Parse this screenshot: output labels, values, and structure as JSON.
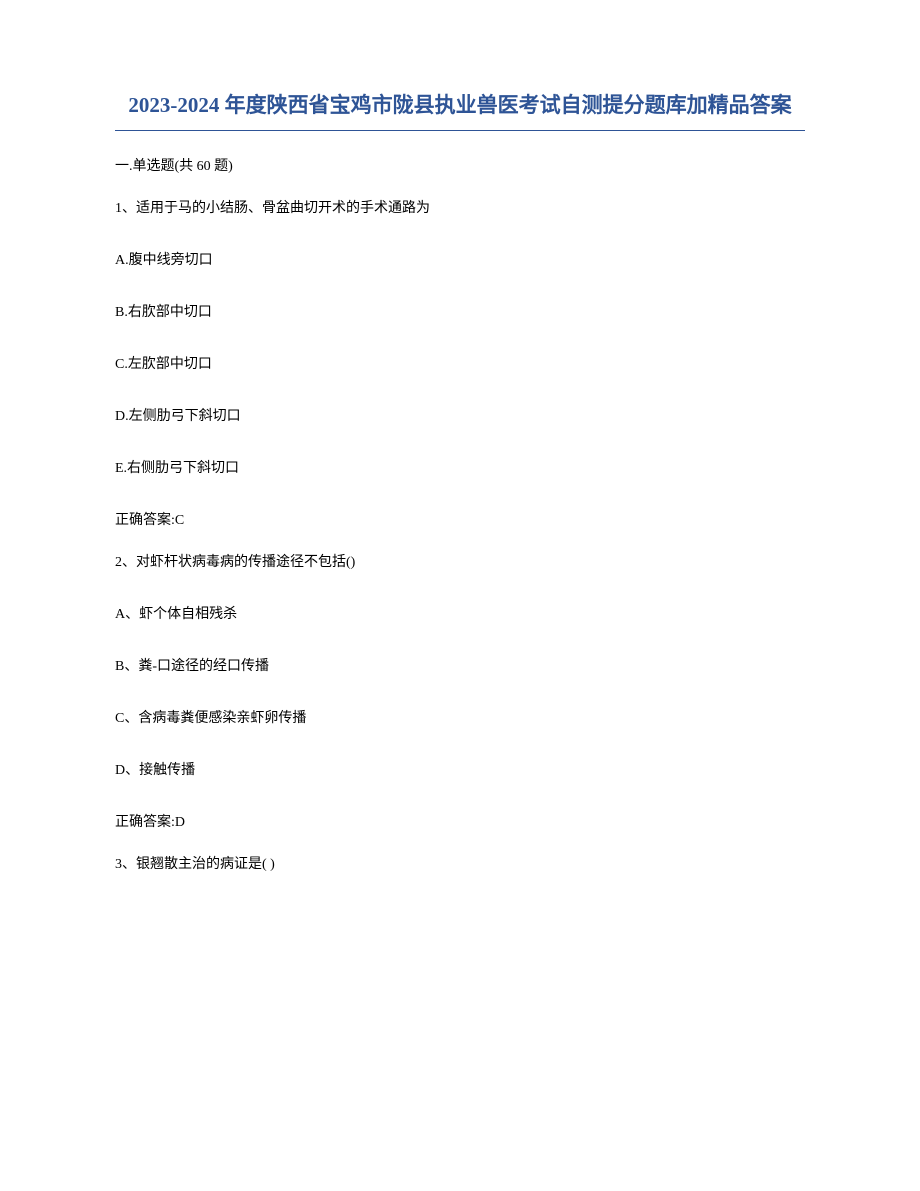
{
  "title": "2023-2024 年度陕西省宝鸡市陇县执业兽医考试自测提分题库加精品答案",
  "section_header": "一.单选题(共 60 题)",
  "questions": [
    {
      "number": "1、",
      "text": "适用于马的小结肠、骨盆曲切开术的手术通路为",
      "options": [
        "A.腹中线旁切口",
        "B.右肷部中切口",
        "C.左肷部中切口",
        "D.左侧肋弓下斜切口",
        "E.右侧肋弓下斜切口"
      ],
      "answer": "正确答案:C"
    },
    {
      "number": "2、",
      "text": "对虾杆状病毒病的传播途径不包括()",
      "options": [
        "A、虾个体自相残杀",
        "B、粪-口途径的经口传播",
        "C、含病毒粪便感染亲虾卵传播",
        "D、接触传播"
      ],
      "answer": "正确答案:D"
    },
    {
      "number": "3、",
      "text": "银翘散主治的病证是( )",
      "options": [],
      "answer": ""
    }
  ],
  "colors": {
    "title_color": "#2e5496",
    "text_color": "#000000",
    "background_color": "#ffffff",
    "divider_color": "#2e5496"
  },
  "typography": {
    "title_fontsize": 21,
    "body_fontsize": 14,
    "title_weight": "bold"
  }
}
